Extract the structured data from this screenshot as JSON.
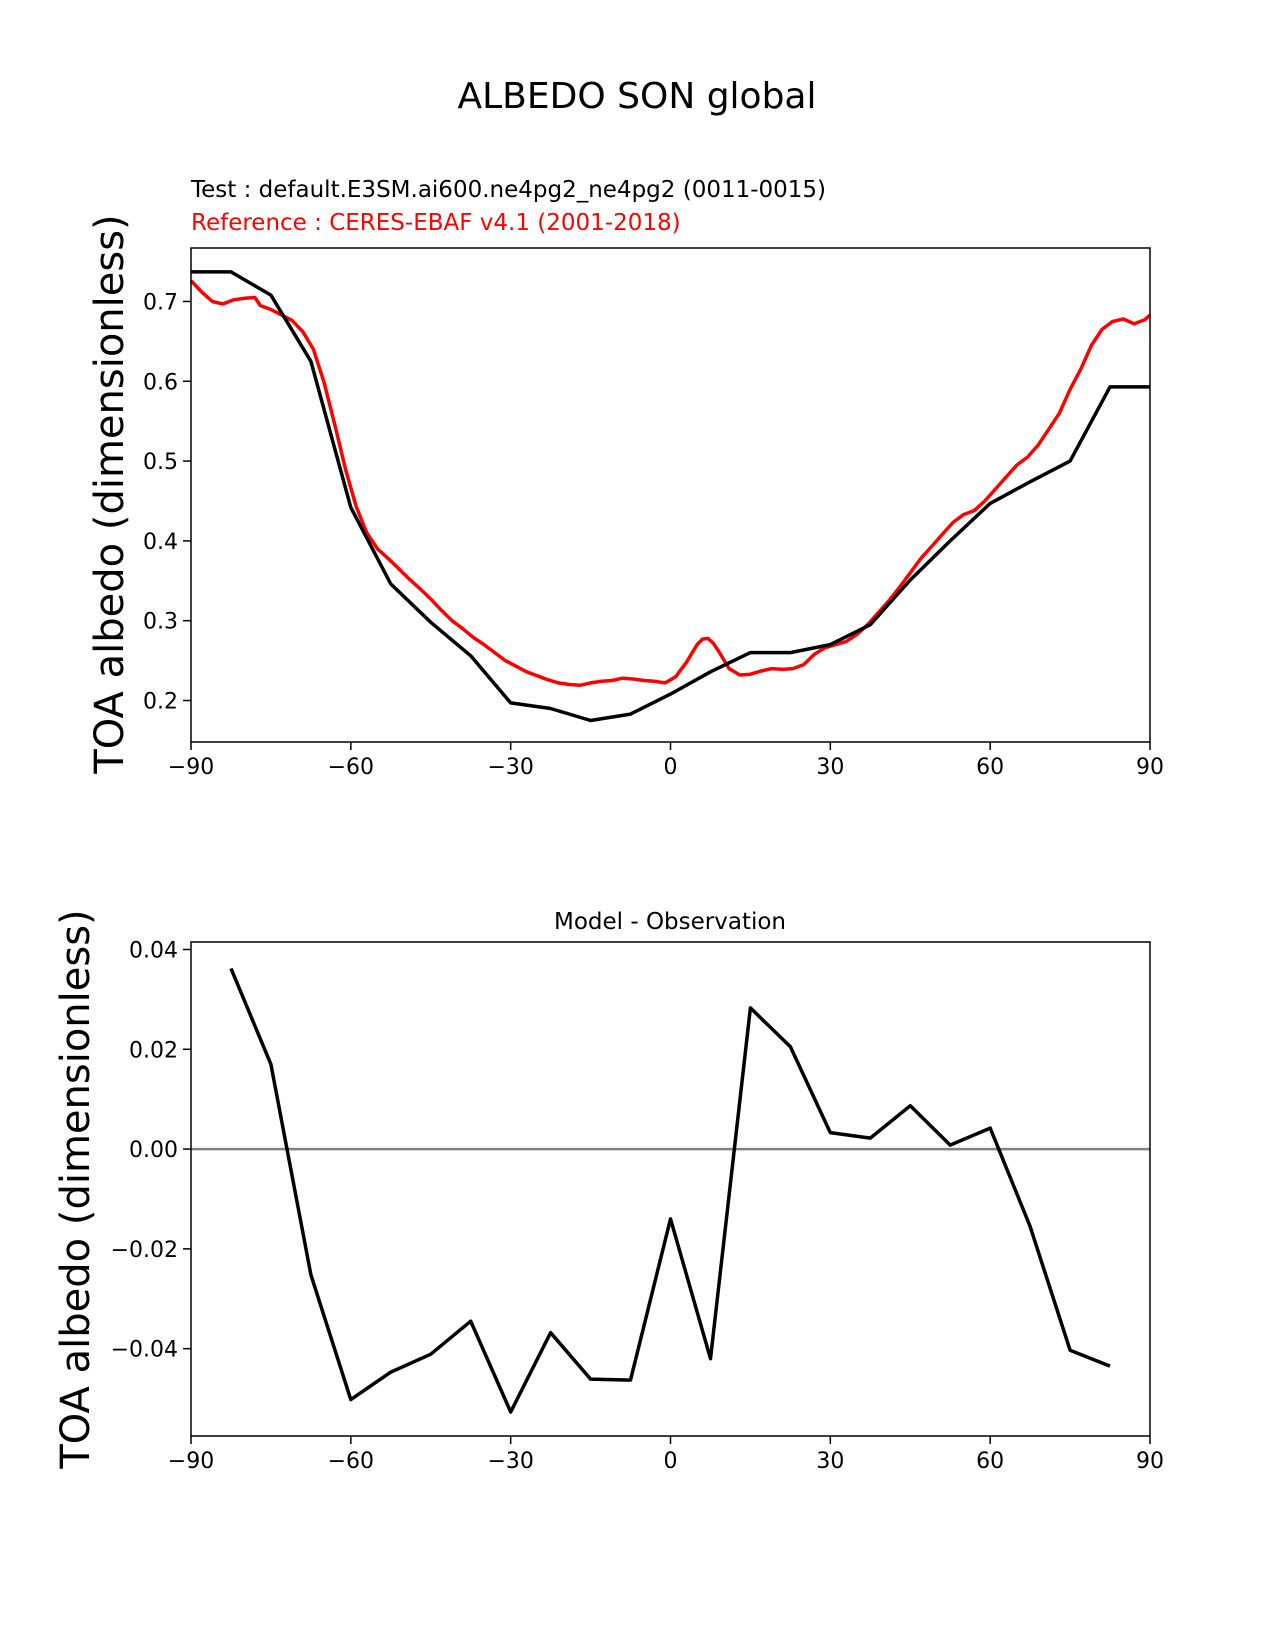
{
  "figure": {
    "suptitle": "ALBEDO SON global"
  },
  "colors": {
    "test": "#000000",
    "reference": "#ff0000",
    "zero_line": "#808080",
    "axes": "#000000"
  },
  "chart_data": [
    {
      "type": "line",
      "subtitle_test": "Test : default.E3SM.ai600.ne4pg2_ne4pg2 (0011-0015)",
      "subtitle_reference": "Reference : CERES-EBAF v4.1 (2001-2018)",
      "ylabel": "TOA albedo (dimensionless)",
      "xlabel": "",
      "xlim": [
        -90,
        90
      ],
      "ylim": [
        0.148,
        0.767
      ],
      "xticks": [
        -90,
        -60,
        -30,
        0,
        30,
        60,
        90
      ],
      "xtick_labels": [
        "−90",
        "−60",
        "−30",
        "0",
        "30",
        "60",
        "90"
      ],
      "yticks": [
        0.2,
        0.3,
        0.4,
        0.5,
        0.6,
        0.7
      ],
      "ytick_labels": [
        "0.2",
        "0.3",
        "0.4",
        "0.5",
        "0.6",
        "0.7"
      ],
      "series": [
        {
          "name": "test",
          "x": [
            -90,
            -82.5,
            -75,
            -67.5,
            -60,
            -52.5,
            -45,
            -37.5,
            -30,
            -22.5,
            -15,
            -7.5,
            0,
            7.5,
            15,
            22.5,
            30,
            37.5,
            45,
            52.5,
            60,
            67.5,
            75,
            82.5,
            90
          ],
          "values": [
            0.737,
            0.737,
            0.708,
            0.625,
            0.442,
            0.346,
            0.298,
            0.256,
            0.197,
            0.19,
            0.175,
            0.183,
            0.208,
            0.236,
            0.26,
            0.26,
            0.27,
            0.295,
            0.351,
            0.4,
            0.447,
            0.474,
            0.5,
            0.593,
            0.593
          ]
        },
        {
          "name": "reference",
          "x": [
            -90,
            -88,
            -86,
            -84,
            -82,
            -80,
            -78,
            -77,
            -75,
            -73,
            -71,
            -69,
            -67,
            -65,
            -63,
            -61,
            -59,
            -57,
            -55,
            -53,
            -51,
            -49,
            -47,
            -45,
            -43,
            -41,
            -39,
            -37,
            -35,
            -33,
            -31,
            -29,
            -27,
            -25,
            -23,
            -21,
            -19,
            -17,
            -15,
            -13,
            -11,
            -9,
            -7,
            -5,
            -3,
            -1,
            1,
            3,
            5,
            6,
            7,
            8,
            9,
            11,
            13,
            15,
            17,
            19,
            21,
            23,
            25,
            27,
            29,
            31,
            33,
            35,
            37,
            39,
            41,
            43,
            45,
            47,
            49,
            51,
            53,
            55,
            57,
            59,
            61,
            63,
            65,
            67,
            69,
            71,
            73,
            75,
            77,
            79,
            81,
            83,
            85,
            87,
            89,
            90
          ],
          "values": [
            0.726,
            0.712,
            0.7,
            0.697,
            0.702,
            0.704,
            0.705,
            0.695,
            0.69,
            0.683,
            0.676,
            0.662,
            0.64,
            0.598,
            0.545,
            0.49,
            0.443,
            0.41,
            0.39,
            0.378,
            0.365,
            0.352,
            0.34,
            0.327,
            0.313,
            0.3,
            0.29,
            0.279,
            0.27,
            0.26,
            0.25,
            0.243,
            0.236,
            0.231,
            0.226,
            0.222,
            0.22,
            0.219,
            0.222,
            0.224,
            0.225,
            0.228,
            0.227,
            0.225,
            0.224,
            0.222,
            0.23,
            0.248,
            0.27,
            0.277,
            0.278,
            0.272,
            0.262,
            0.24,
            0.232,
            0.233,
            0.237,
            0.24,
            0.239,
            0.24,
            0.245,
            0.258,
            0.266,
            0.27,
            0.274,
            0.283,
            0.295,
            0.31,
            0.325,
            0.342,
            0.36,
            0.378,
            0.393,
            0.408,
            0.423,
            0.433,
            0.438,
            0.45,
            0.465,
            0.48,
            0.495,
            0.505,
            0.52,
            0.54,
            0.56,
            0.59,
            0.615,
            0.645,
            0.665,
            0.675,
            0.678,
            0.672,
            0.677,
            0.683
          ]
        }
      ]
    },
    {
      "type": "line",
      "title": "Model - Observation",
      "ylabel": "TOA albedo (dimensionless)",
      "xlabel": "",
      "xlim": [
        -90,
        90
      ],
      "ylim": [
        -0.0575,
        0.0415
      ],
      "xticks": [
        -90,
        -60,
        -30,
        0,
        30,
        60,
        90
      ],
      "xtick_labels": [
        "−90",
        "−60",
        "−30",
        "0",
        "30",
        "60",
        "90"
      ],
      "yticks": [
        -0.04,
        -0.02,
        0.0,
        0.02,
        0.04
      ],
      "ytick_labels": [
        "−0.04",
        "−0.02",
        "0.00",
        "0.02",
        "0.04"
      ],
      "zero_line": 0,
      "series": [
        {
          "name": "model-minus-observation",
          "x": [
            -82.5,
            -75,
            -67.5,
            -60,
            -52.5,
            -45,
            -37.5,
            -30,
            -22.5,
            -15,
            -7.5,
            0,
            7.5,
            15,
            22.5,
            30,
            37.5,
            45,
            52.5,
            60,
            67.5,
            75,
            82.5
          ],
          "values": [
            0.0362,
            0.017,
            -0.0252,
            -0.0502,
            -0.0447,
            -0.0411,
            -0.0345,
            -0.0527,
            -0.0368,
            -0.0461,
            -0.0463,
            -0.014,
            -0.042,
            0.0283,
            0.0205,
            0.0033,
            0.0022,
            0.0087,
            0.0008,
            0.0042,
            -0.0155,
            -0.0403,
            -0.0435
          ]
        }
      ]
    }
  ]
}
